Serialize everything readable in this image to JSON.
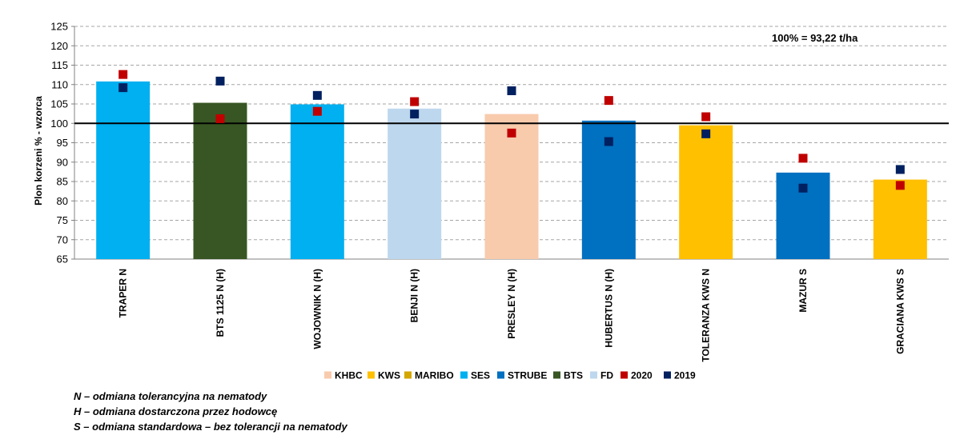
{
  "chart_data": {
    "type": "bar",
    "ylabel": "Plon korzeni % - wzorca",
    "ylim": [
      65,
      125
    ],
    "yticks": [
      65,
      70,
      75,
      80,
      85,
      90,
      95,
      100,
      105,
      110,
      115,
      120,
      125
    ],
    "grid": "horizontal dashed",
    "reference_line": 100,
    "annotation": "100% = 93,22 t/ha",
    "categories": [
      "TRAPER N",
      "BTS 1125 N (H)",
      "WOJOWNIK N (H)",
      "BENJI N (H)",
      "PRESLEY N (H)",
      "HUBERTUS N (H)",
      "TOLERANZA KWS N",
      "MAZUR S",
      "GRACIANA KWS S"
    ],
    "bar_breeder": [
      "SES",
      "BTS",
      "SES",
      "FD",
      "KHBC",
      "STRUBE",
      "KWS",
      "STRUBE",
      "KWS"
    ],
    "values": [
      110.8,
      105.3,
      104.9,
      103.8,
      102.4,
      100.7,
      99.5,
      87.3,
      85.5
    ],
    "series": [
      {
        "name": "2020",
        "color": "#c00000",
        "values": [
          112.6,
          101.2,
          103.1,
          105.6,
          97.5,
          105.9,
          101.7,
          91.0,
          84.0
        ]
      },
      {
        "name": "2019",
        "color": "#002060",
        "values": [
          109.2,
          110.9,
          107.2,
          102.4,
          108.4,
          95.3,
          97.3,
          83.3,
          88.1
        ]
      }
    ],
    "legend_position": "bottom",
    "legend": [
      {
        "label": "KHBC",
        "color": "#f8cbad"
      },
      {
        "label": "KWS",
        "color": "#ffc000"
      },
      {
        "label": "MARIBO",
        "color": "#d4a600"
      },
      {
        "label": "SES",
        "color": "#00b0f0"
      },
      {
        "label": "STRUBE",
        "color": "#0070c0"
      },
      {
        "label": "BTS",
        "color": "#375623"
      },
      {
        "label": "FD",
        "color": "#bdd7ee"
      },
      {
        "label": "2020",
        "color": "#c00000"
      },
      {
        "label": "2019",
        "color": "#002060"
      }
    ]
  },
  "notes": [
    "N – odmiana tolerancyjna na nematody",
    "H – odmiana dostarczona przez hodowcę",
    "S – odmiana standardowa – bez tolerancji na nematody"
  ]
}
